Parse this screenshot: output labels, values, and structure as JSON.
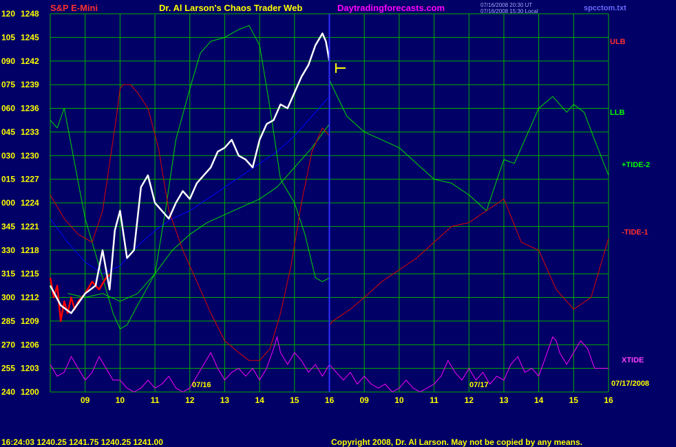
{
  "header": {
    "symbol": "S&P E-Mini",
    "title": "Dr. Al Larson's Chaos Trader Web",
    "site": "Daytradingforecasts.com",
    "timestamp_ut": "07/16/2008 20:30 UT",
    "timestamp_local": "07/16/2008 15:30 Local",
    "filename": "spcctom.txt"
  },
  "labels": {
    "ulb": "ULB",
    "llb": "LLB",
    "tide_plus2": "+TIDE-2",
    "tide_minus1": "-TIDE-1",
    "xtide": "XTIDE",
    "date_right": "07/17/2008",
    "day1": "07/16",
    "day2": "07/17"
  },
  "footer": {
    "quote": "16:24:03  1240.25  1241.75  1240.25  1241.00",
    "copyright": "Copyright 2008, Dr. Al Larson. May not be copied by any means."
  },
  "colors": {
    "background": "#000066",
    "grid": "#00b000",
    "ulb": "#e00000",
    "llb": "#00dd00",
    "xtide": "#ff00ff",
    "price": "#ffffff",
    "price_early": "#ff0000",
    "ma_blue": "#0000ff",
    "axis_text": "#ffff00",
    "now_line": "#3030ff"
  },
  "chart_data": {
    "type": "line",
    "ylim": [
      1200,
      1248
    ],
    "y_ticks": [
      {
        "angle": "120",
        "price": "1248"
      },
      {
        "angle": "105",
        "price": "1245"
      },
      {
        "angle": "090",
        "price": "1242"
      },
      {
        "angle": "075",
        "price": "1239"
      },
      {
        "angle": "060",
        "price": "1236"
      },
      {
        "angle": "045",
        "price": "1233"
      },
      {
        "angle": "030",
        "price": "1230"
      },
      {
        "angle": "015",
        "price": "1227"
      },
      {
        "angle": "000",
        "price": "1224"
      },
      {
        "angle": "345",
        "price": "1221"
      },
      {
        "angle": "330",
        "price": "1218"
      },
      {
        "angle": "315",
        "price": "1215"
      },
      {
        "angle": "300",
        "price": "1212"
      },
      {
        "angle": "285",
        "price": "1209"
      },
      {
        "angle": "270",
        "price": "1206"
      },
      {
        "angle": "255",
        "price": "1203"
      },
      {
        "angle": "240",
        "price": "1200"
      }
    ],
    "x_ticks": [
      "09",
      "10",
      "11",
      "12",
      "13",
      "14",
      "15",
      "16",
      "09",
      "10",
      "11",
      "12",
      "13",
      "14",
      "15",
      "16"
    ],
    "xlim": [
      8.0,
      24.0
    ],
    "now_x": 16.0,
    "series": [
      {
        "key": "price",
        "color": "#ffffff",
        "x": [
          8.0,
          8.3,
          8.6,
          9.0,
          9.3,
          9.5,
          9.7,
          9.85,
          10.0,
          10.2,
          10.4,
          10.6,
          10.8,
          11.0,
          11.2,
          11.4,
          11.6,
          11.8,
          12.0,
          12.2,
          12.4,
          12.6,
          12.8,
          13.0,
          13.2,
          13.4,
          13.6,
          13.8,
          14.0,
          14.2,
          14.4,
          14.6,
          14.8,
          15.0,
          15.2,
          15.4,
          15.6,
          15.8,
          15.9,
          16.0
        ],
        "y": [
          1213.5,
          1211.0,
          1210.0,
          1212.5,
          1213.5,
          1218.0,
          1213.0,
          1220.5,
          1223.0,
          1217.0,
          1218.0,
          1226.0,
          1227.5,
          1224.0,
          1223.0,
          1222.0,
          1224.0,
          1225.5,
          1224.5,
          1226.5,
          1227.5,
          1228.5,
          1230.5,
          1231.0,
          1232.0,
          1230.0,
          1229.5,
          1228.5,
          1232.0,
          1234.0,
          1234.5,
          1236.5,
          1236.0,
          1238.0,
          1240.0,
          1241.5,
          1244.0,
          1245.5,
          1244.5,
          1242.0
        ]
      },
      {
        "key": "price_early",
        "color": "#ff0000",
        "x": [
          8.0,
          8.1,
          8.2,
          8.3,
          8.4,
          8.5,
          8.6,
          8.7,
          8.8,
          9.0,
          9.2,
          9.4,
          9.6,
          9.75
        ],
        "y": [
          1214.5,
          1212.0,
          1213.5,
          1209.0,
          1211.5,
          1210.0,
          1212.0,
          1210.5,
          1211.5,
          1212.5,
          1214.0,
          1213.0,
          1214.5,
          1215.0
        ]
      },
      {
        "key": "ulb",
        "color": "#e00000",
        "x": [
          8.0,
          8.4,
          8.8,
          9.2,
          9.5,
          9.9,
          10.0,
          10.1,
          10.3,
          10.5,
          10.8,
          11.1,
          11.4,
          11.8,
          12.2,
          12.6,
          13.0,
          13.4,
          13.7,
          14.0,
          14.3,
          14.6,
          14.9,
          15.2,
          15.5,
          15.8,
          16.0,
          16.01,
          16.1,
          16.6,
          17.0,
          17.5,
          18.0,
          18.5,
          19.0,
          19.5,
          20.0,
          20.5,
          21.0,
          21.5,
          22.0,
          22.5,
          23.0,
          23.5,
          24.0
        ],
        "y": [
          1225.0,
          1222.0,
          1220.0,
          1219.0,
          1223.0,
          1235.0,
          1238.5,
          1239.0,
          1239.0,
          1238.0,
          1236.0,
          1231.0,
          1223.0,
          1218.0,
          1214.0,
          1210.0,
          1206.5,
          1205.0,
          1204.0,
          1204.0,
          1205.5,
          1210.0,
          1216.0,
          1224.0,
          1230.5,
          1233.5,
          1232.5,
          1208.5,
          1209.0,
          1210.5,
          1212.0,
          1214.0,
          1215.5,
          1217.0,
          1219.0,
          1221.0,
          1221.5,
          1223.0,
          1224.5,
          1219.0,
          1218.0,
          1213.0,
          1210.5,
          1212.0,
          1219.5
        ]
      },
      {
        "key": "llb",
        "color": "#00dd00",
        "x": [
          8.0,
          8.2,
          8.4,
          8.7,
          9.0,
          9.4,
          9.8,
          10.0,
          10.2,
          10.5,
          11.0,
          11.3,
          11.6,
          12.0,
          12.3,
          12.6,
          13.0,
          13.4,
          13.7,
          14.0,
          14.3,
          14.6,
          15.0,
          15.3,
          15.6,
          15.8,
          16.0,
          16.01,
          16.5,
          17.0,
          17.5,
          18.0,
          18.5,
          19.0,
          19.5,
          20.0,
          20.5,
          21.0,
          21.3,
          21.6,
          22.0,
          22.4,
          22.8,
          23.0,
          23.3,
          23.6,
          24.0
        ],
        "y": [
          1234.5,
          1233.5,
          1236.0,
          1229.0,
          1222.0,
          1216.0,
          1210.0,
          1208.0,
          1208.5,
          1211.0,
          1215.0,
          1223.0,
          1232.0,
          1238.5,
          1243.0,
          1244.5,
          1245.0,
          1246.0,
          1246.5,
          1244.0,
          1236.0,
          1227.0,
          1224.0,
          1220.0,
          1214.5,
          1214.0,
          1214.5,
          1239.5,
          1235.0,
          1233.0,
          1232.0,
          1231.0,
          1229.0,
          1227.0,
          1226.5,
          1225.0,
          1223.0,
          1229.5,
          1229.0,
          1232.0,
          1236.0,
          1237.5,
          1235.5,
          1236.5,
          1235.5,
          1232.0,
          1227.5
        ]
      },
      {
        "key": "llb_2",
        "color": "#00dd00",
        "x": [
          8.5,
          9.0,
          9.5,
          10.0,
          10.5,
          11.0,
          11.5,
          12.0,
          12.5,
          13.0,
          13.5,
          14.0,
          14.5,
          15.0,
          15.5,
          16.0
        ],
        "y": [
          1212.5,
          1212.0,
          1212.5,
          1211.5,
          1212.5,
          1215.0,
          1218.0,
          1220.0,
          1221.5,
          1222.5,
          1223.5,
          1224.5,
          1226.0,
          1228.5,
          1231.0,
          1234.0
        ]
      },
      {
        "key": "ma_blue",
        "color": "#0000ff",
        "x": [
          8.0,
          8.5,
          9.0,
          9.5,
          10.0,
          10.5,
          11.0,
          11.5,
          12.0,
          12.5,
          13.0,
          13.5,
          14.0,
          14.5,
          15.0,
          15.5,
          16.0
        ],
        "y": [
          1222.0,
          1219.0,
          1216.5,
          1215.0,
          1216.0,
          1218.5,
          1220.5,
          1222.0,
          1223.0,
          1224.5,
          1226.0,
          1227.5,
          1229.0,
          1230.5,
          1232.5,
          1235.0,
          1237.5
        ]
      },
      {
        "key": "xtide",
        "color": "#ff00ff",
        "x": [
          8.0,
          8.2,
          8.4,
          8.6,
          8.8,
          9.0,
          9.2,
          9.4,
          9.6,
          9.8,
          10.0,
          10.2,
          10.4,
          10.6,
          10.8,
          11.0,
          11.2,
          11.4,
          11.6,
          11.8,
          12.0,
          12.2,
          12.4,
          12.6,
          12.8,
          13.0,
          13.2,
          13.4,
          13.6,
          13.8,
          14.0,
          14.2,
          14.4,
          14.5,
          14.6,
          14.8,
          15.0,
          15.2,
          15.4,
          15.6,
          15.8,
          16.0,
          16.2,
          16.4,
          16.6,
          16.8,
          17.0,
          17.2,
          17.4,
          17.6,
          17.8,
          18.0,
          18.2,
          18.4,
          18.6,
          18.8,
          19.0,
          19.2,
          19.4,
          19.6,
          19.8,
          20.0,
          20.2,
          20.4,
          20.6,
          20.8,
          21.0,
          21.2,
          21.4,
          21.6,
          21.8,
          22.0,
          22.2,
          22.4,
          22.5,
          22.6,
          22.8,
          23.0,
          23.2,
          23.4,
          23.6,
          23.8,
          24.0
        ],
        "y": [
          1203.5,
          1202.0,
          1202.5,
          1204.5,
          1203.0,
          1201.5,
          1202.5,
          1204.5,
          1203.0,
          1201.5,
          1201.5,
          1200.5,
          1200.0,
          1200.5,
          1201.5,
          1200.5,
          1201.0,
          1202.0,
          1200.5,
          1200.0,
          1200.5,
          1202.0,
          1203.5,
          1205.0,
          1203.0,
          1201.5,
          1202.5,
          1203.0,
          1202.0,
          1203.0,
          1201.5,
          1203.0,
          1205.5,
          1207.0,
          1205.0,
          1203.5,
          1205.0,
          1204.0,
          1202.5,
          1203.5,
          1202.0,
          1203.5,
          1202.5,
          1201.5,
          1202.5,
          1201.0,
          1202.0,
          1201.0,
          1200.5,
          1201.0,
          1200.0,
          1200.5,
          1201.5,
          1200.5,
          1200.0,
          1200.5,
          1201.0,
          1202.0,
          1204.0,
          1202.5,
          1201.5,
          1203.0,
          1201.5,
          1202.5,
          1201.0,
          1202.0,
          1201.5,
          1203.5,
          1204.5,
          1202.5,
          1203.0,
          1202.0,
          1204.5,
          1207.0,
          1206.5,
          1205.0,
          1203.5,
          1205.0,
          1206.5,
          1205.5,
          1203.0,
          1203.0,
          1203.0
        ]
      }
    ]
  }
}
